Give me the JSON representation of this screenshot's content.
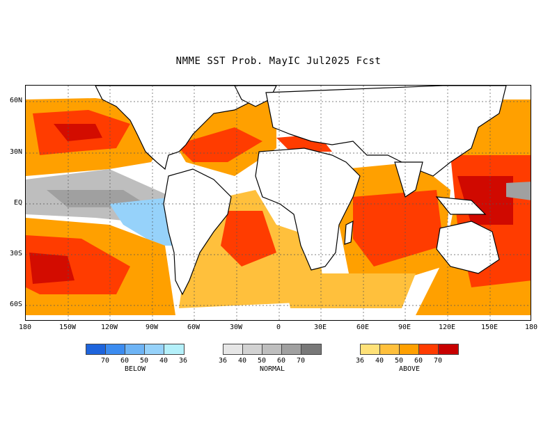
{
  "title": "NMME SST Prob. MayIC  Jul2025 Fcst",
  "map": {
    "lat_labels": [
      "60N",
      "30N",
      "EQ",
      "30S",
      "60S"
    ],
    "lon_labels": [
      "180",
      "150W",
      "120W",
      "90W",
      "60W",
      "30W",
      "0",
      "30E",
      "60E",
      "90E",
      "120E",
      "150E",
      "180"
    ],
    "ocean_fill_note": ""
  },
  "legends": {
    "below": {
      "name": "BELOW",
      "colors": [
        "#1e64dc",
        "#3c8cf0",
        "#6eb4f5",
        "#96d2fa",
        "#b4f0fa"
      ],
      "ticks": [
        "70",
        "60",
        "50",
        "40",
        "36"
      ]
    },
    "normal": {
      "name": "NORMAL",
      "colors": [
        "#e6e6e6",
        "#d2d2d2",
        "#bebebe",
        "#a0a0a0",
        "#787878"
      ],
      "ticks": [
        "36",
        "40",
        "50",
        "60",
        "70"
      ]
    },
    "above": {
      "name": "ABOVE",
      "colors": [
        "#ffe178",
        "#ffc03c",
        "#ffa000",
        "#ff3c00",
        "#c80000"
      ],
      "ticks": [
        "36",
        "40",
        "50",
        "60",
        "70"
      ]
    }
  }
}
